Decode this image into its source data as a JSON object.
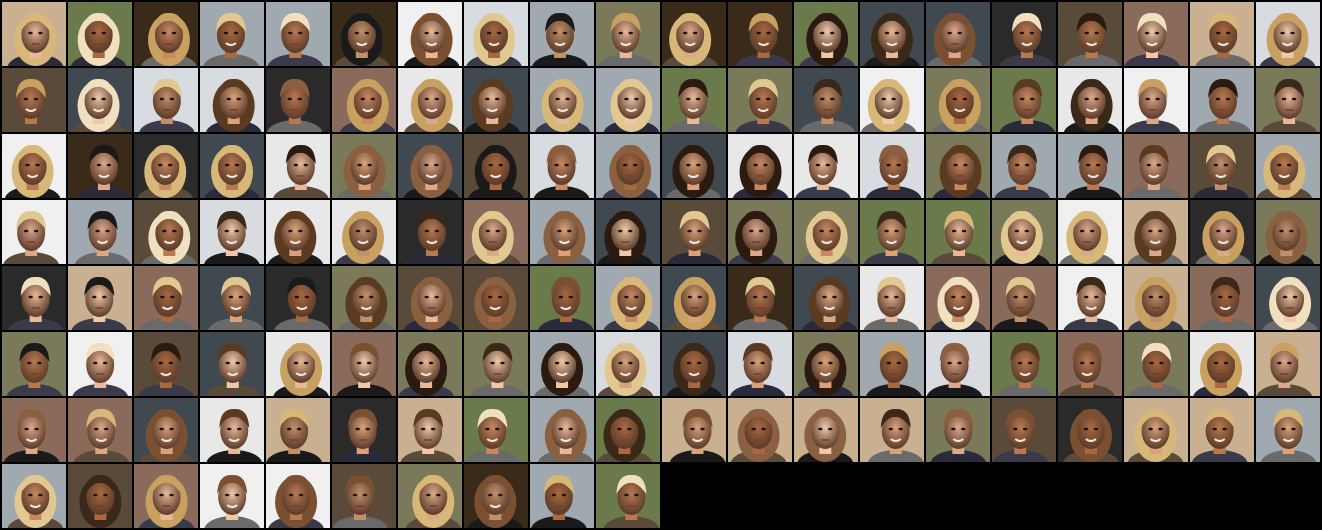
{
  "grid": {
    "columns": 20,
    "rows": 8,
    "tile_count": 150,
    "background_color": "#000000",
    "filled_last_row": 10
  },
  "palette": {
    "backgrounds": [
      "#7a7a5a",
      "#d8dce0",
      "#2a2a2a",
      "#e8e8e8",
      "#5a4a3a",
      "#a0a8b0",
      "#3a2a1a",
      "#c8b090",
      "#404850",
      "#f0f0f0",
      "#6a7a4a",
      "#8a6a5a"
    ],
    "skin_tones": [
      "#d9a27a",
      "#c88860",
      "#e8b898",
      "#b87850",
      "#f0c8a8",
      "#a86840",
      "#dca88a",
      "#c0906a"
    ],
    "hair_colors": [
      "#2a1a10",
      "#5a3a20",
      "#c8a060",
      "#e0c890",
      "#1a1a1a",
      "#7a5030",
      "#d8b878",
      "#3a2818",
      "#f0e0c0",
      "#8a6040"
    ]
  },
  "image_description_tag": "generated-celebrity-faces-grid"
}
